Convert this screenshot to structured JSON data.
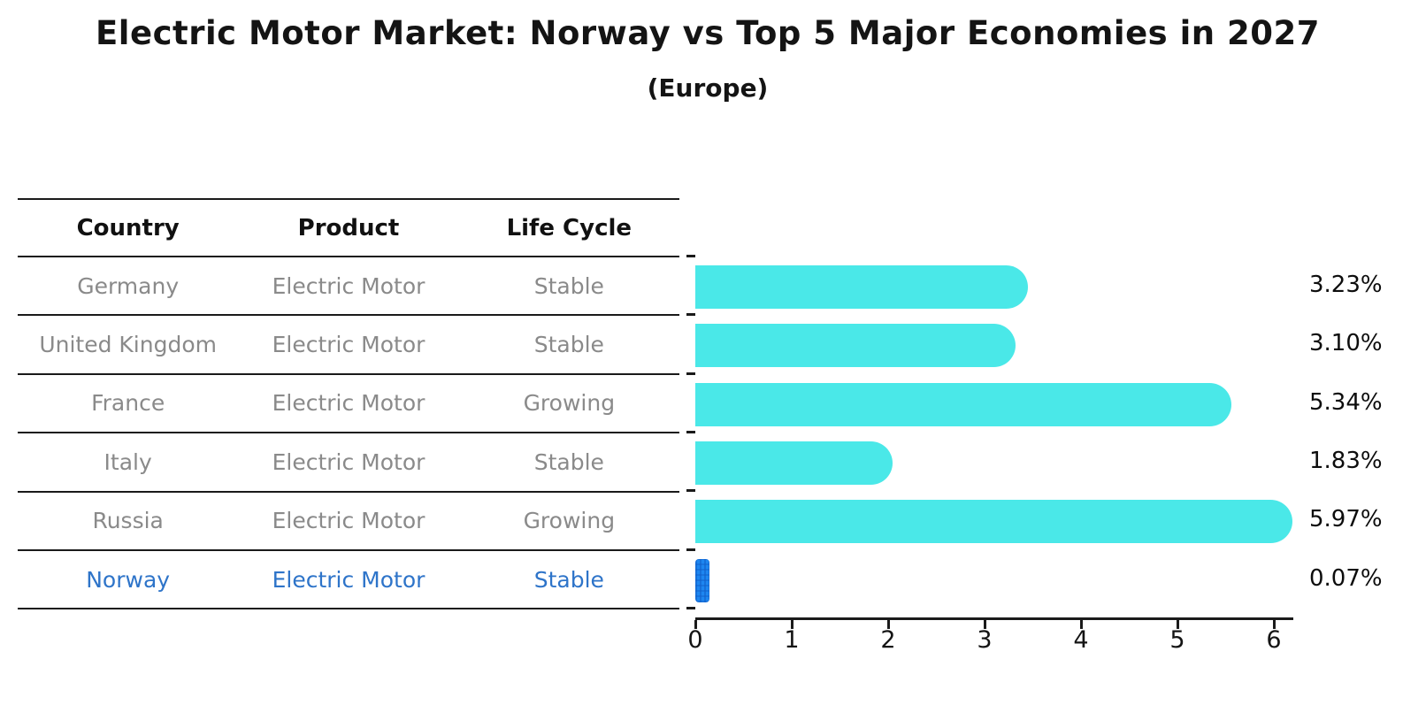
{
  "header": {
    "title": "Electric Motor Market: Norway vs Top 5 Major Economies in 2027",
    "subtitle": "(Europe)"
  },
  "table": {
    "headers": [
      "Country",
      "Product",
      "Life Cycle"
    ],
    "rows": [
      {
        "country": "Germany",
        "product": "Electric Motor",
        "life_cycle": "Stable",
        "highlight": false
      },
      {
        "country": "United Kingdom",
        "product": "Electric Motor",
        "life_cycle": "Stable",
        "highlight": false
      },
      {
        "country": "France",
        "product": "Electric Motor",
        "life_cycle": "Growing",
        "highlight": false
      },
      {
        "country": "Italy",
        "product": "Electric Motor",
        "life_cycle": "Stable",
        "highlight": false
      },
      {
        "country": "Russia",
        "product": "Electric Motor",
        "life_cycle": "Growing",
        "highlight": false
      },
      {
        "country": "Norway",
        "product": "Electric Motor",
        "life_cycle": "Stable",
        "highlight": true
      }
    ]
  },
  "chart_data": {
    "type": "bar",
    "orientation": "horizontal",
    "title": "Electric Motor Market: Norway vs Top 5 Major Economies in 2027 (Europe)",
    "categories": [
      "Germany",
      "United Kingdom",
      "France",
      "Italy",
      "Russia",
      "Norway"
    ],
    "values": [
      3.23,
      3.1,
      5.34,
      1.83,
      5.97,
      0.07
    ],
    "value_labels": [
      "3.23%",
      "3.10%",
      "5.34%",
      "1.83%",
      "5.97%",
      "0.07%"
    ],
    "unit": "%",
    "xlim": [
      0,
      6.2
    ],
    "xticks": [
      0,
      1,
      2,
      3,
      4,
      5,
      6
    ],
    "grid": false,
    "legend": "none",
    "bar_color": "#4ae8e8",
    "highlight_bar_color": "#1e86f0",
    "highlight_index": 5,
    "highlight_text_color": "#2e74c9",
    "row_text_color": "#8a8a8a"
  }
}
